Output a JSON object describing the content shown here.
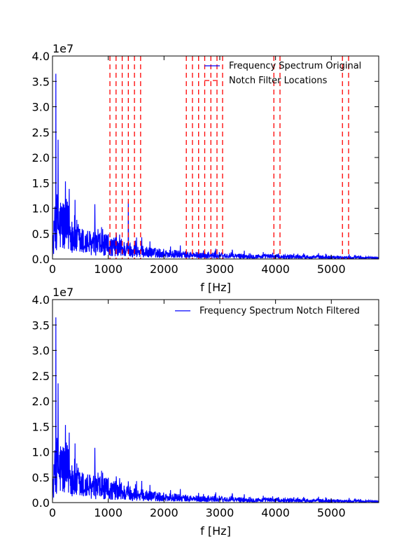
{
  "chart_data": [
    {
      "type": "line",
      "xlabel": "f [Hz]",
      "ylabel": "",
      "xlim": [
        0,
        5850
      ],
      "ylim": [
        0,
        40000000
      ],
      "x_ticks": [
        0,
        1000,
        2000,
        3000,
        4000,
        5000
      ],
      "x_tick_labels": [
        "0",
        "1000",
        "2000",
        "3000",
        "4000",
        "5000"
      ],
      "y_ticks": [
        0,
        5000000,
        10000000,
        15000000,
        20000000,
        25000000,
        30000000,
        35000000,
        40000000
      ],
      "y_tick_labels": [
        "0.0",
        "0.5",
        "1.0",
        "1.5",
        "2.0",
        "2.5",
        "3.0",
        "3.5",
        "4.0"
      ],
      "y_offset_label": "1e7",
      "grid": false,
      "legend_position": "top-right",
      "series": [
        {
          "name": "Frequency Spectrum Original",
          "color": "#0000ff",
          "style": "solid",
          "peaks": [
            {
              "x": 60,
              "y": 36500000
            },
            {
              "x": 100,
              "y": 23500000
            },
            {
              "x": 230,
              "y": 15300000
            },
            {
              "x": 300,
              "y": 13800000
            },
            {
              "x": 760,
              "y": 10800000
            },
            {
              "x": 1360,
              "y": 11300000
            },
            {
              "x": 2620,
              "y": 1900000
            }
          ]
        },
        {
          "name": "Notch Filter Locations",
          "color": "#ff0000",
          "style": "dashed",
          "x": [
            1030,
            1140,
            1250,
            1360,
            1470,
            1580,
            2400,
            2510,
            2620,
            2730,
            2840,
            2950,
            3050,
            3970,
            4080,
            5200,
            5310
          ]
        }
      ]
    },
    {
      "type": "line",
      "xlabel": "f [Hz]",
      "ylabel": "",
      "xlim": [
        0,
        5850
      ],
      "ylim": [
        0,
        40000000
      ],
      "x_ticks": [
        0,
        1000,
        2000,
        3000,
        4000,
        5000
      ],
      "x_tick_labels": [
        "0",
        "1000",
        "2000",
        "3000",
        "4000",
        "5000"
      ],
      "y_ticks": [
        0,
        5000000,
        10000000,
        15000000,
        20000000,
        25000000,
        30000000,
        35000000,
        40000000
      ],
      "y_tick_labels": [
        "0.0",
        "0.5",
        "1.0",
        "1.5",
        "2.0",
        "2.5",
        "3.0",
        "3.5",
        "4.0"
      ],
      "y_offset_label": "1e7",
      "grid": false,
      "legend_position": "top-right",
      "series": [
        {
          "name": "Frequency Spectrum Notch Filtered",
          "color": "#0000ff",
          "style": "solid",
          "peaks": [
            {
              "x": 60,
              "y": 36500000
            },
            {
              "x": 100,
              "y": 23500000
            },
            {
              "x": 230,
              "y": 15300000
            },
            {
              "x": 300,
              "y": 13800000
            },
            {
              "x": 760,
              "y": 10800000
            },
            {
              "x": 1360,
              "y": 4200000
            },
            {
              "x": 2620,
              "y": 1900000
            }
          ]
        }
      ]
    }
  ]
}
